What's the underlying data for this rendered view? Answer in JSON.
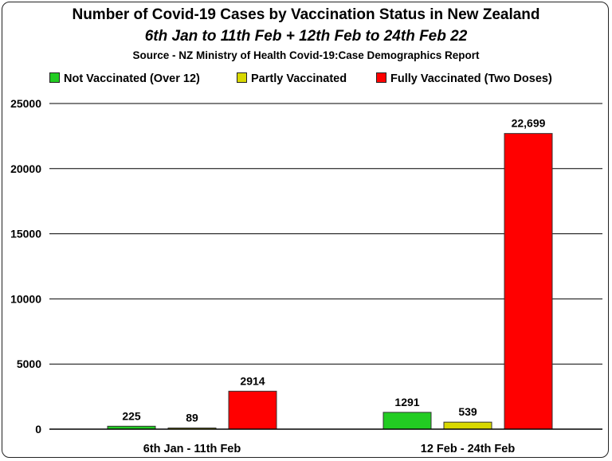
{
  "chart_data": {
    "type": "bar",
    "title": "Number of Covid-19 Cases by Vaccination Status in New Zealand",
    "subtitle": "6th Jan to 11th Feb + 12th Feb to 24th Feb 22",
    "source": "Source - NZ Ministry of Health Covid-19:Case Demographics Report",
    "categories": [
      "6th Jan - 11th Feb",
      "12 Feb - 24th Feb"
    ],
    "series": [
      {
        "name": "Not Vaccinated (Over 12)",
        "color": "#22cc22",
        "values": [
          225,
          1291
        ],
        "labels": [
          "225",
          "1291"
        ]
      },
      {
        "name": "Partly Vaccinated",
        "color": "#d8d800",
        "values": [
          89,
          539
        ],
        "labels": [
          "89",
          "539"
        ]
      },
      {
        "name": "Fully Vaccinated (Two Doses)",
        "color": "#ff0000",
        "values": [
          2914,
          22699
        ],
        "labels": [
          "2914",
          "22,699"
        ]
      }
    ],
    "ylim": [
      0,
      25000
    ],
    "yticks": [
      "0",
      "5000",
      "10000",
      "15000",
      "20000",
      "25000"
    ],
    "grid": true,
    "legend_position": "top"
  }
}
